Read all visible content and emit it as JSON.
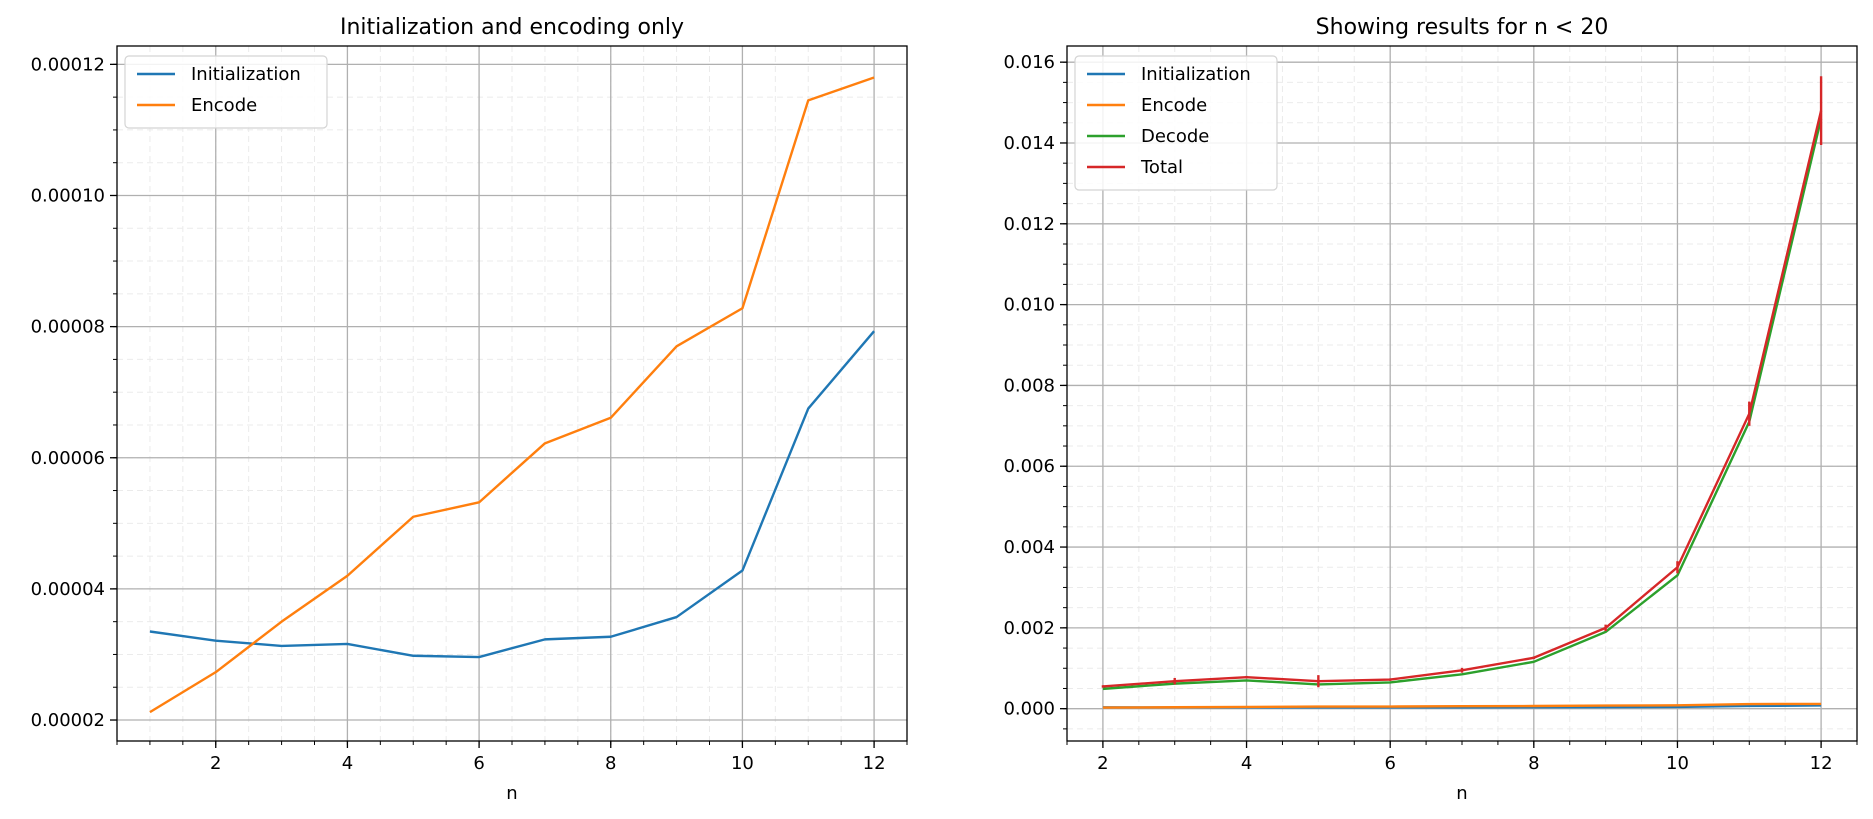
{
  "chart_data": [
    {
      "type": "line",
      "title": "Initialization and encoding only",
      "xlabel": "n",
      "ylabel": "",
      "xlim": [
        0.5,
        12.5
      ],
      "ylim": [
        1.68e-05,
        0.0001228
      ],
      "xticks": [
        2,
        4,
        6,
        8,
        10,
        12
      ],
      "xtick_labels": [
        "2",
        "4",
        "6",
        "8",
        "10",
        "12"
      ],
      "yticks": [
        2e-05,
        4e-05,
        6e-05,
        8e-05,
        0.0001,
        0.00012
      ],
      "ytick_labels": [
        "0.00002",
        "0.00004",
        "0.00006",
        "0.00008",
        "0.00010",
        "0.00012"
      ],
      "x": [
        1,
        2,
        3,
        4,
        5,
        6,
        7,
        8,
        9,
        10,
        11,
        12
      ],
      "grid": true,
      "legend_position": "top-left",
      "series": [
        {
          "name": "Initialization",
          "color": "#1f77b4",
          "values": [
            3.35e-05,
            3.21e-05,
            3.13e-05,
            3.16e-05,
            2.98e-05,
            2.96e-05,
            3.23e-05,
            3.27e-05,
            3.57e-05,
            4.28e-05,
            6.75e-05,
            7.93e-05
          ]
        },
        {
          "name": "Encode",
          "color": "#ff7f0e",
          "values": [
            2.12e-05,
            2.73e-05,
            3.5e-05,
            4.2e-05,
            5.1e-05,
            5.32e-05,
            6.22e-05,
            6.61e-05,
            7.7e-05,
            8.28e-05,
            0.0001145,
            0.000118
          ]
        }
      ]
    },
    {
      "type": "line",
      "title": "Showing results for n < 20",
      "xlabel": "n",
      "ylabel": "",
      "xlim": [
        1.5,
        12.5
      ],
      "ylim": [
        -0.0008,
        0.0164
      ],
      "xticks": [
        2,
        4,
        6,
        8,
        10,
        12
      ],
      "xtick_labels": [
        "2",
        "4",
        "6",
        "8",
        "10",
        "12"
      ],
      "yticks": [
        0,
        0.002,
        0.004,
        0.006,
        0.008,
        0.01,
        0.012,
        0.014,
        0.016
      ],
      "ytick_labels": [
        "0.000",
        "0.002",
        "0.004",
        "0.006",
        "0.008",
        "0.010",
        "0.012",
        "0.014",
        "0.016"
      ],
      "x": [
        2,
        3,
        4,
        5,
        6,
        7,
        8,
        9,
        10,
        11,
        12
      ],
      "grid": true,
      "legend_position": "top-left",
      "series": [
        {
          "name": "Initialization",
          "color": "#1f77b4",
          "values": [
            3.2e-05,
            3.1e-05,
            3.2e-05,
            3e-05,
            3e-05,
            3.2e-05,
            3.3e-05,
            3.6e-05,
            4.3e-05,
            6.8e-05,
            7.9e-05
          ]
        },
        {
          "name": "Encode",
          "color": "#ff7f0e",
          "values": [
            2.7e-05,
            3.5e-05,
            4.2e-05,
            5.1e-05,
            5.3e-05,
            6.2e-05,
            6.6e-05,
            7.7e-05,
            8.3e-05,
            0.000115,
            0.000118
          ]
        },
        {
          "name": "Decode",
          "color": "#2ca02c",
          "values": [
            0.00049,
            0.00062,
            0.0007,
            0.0006,
            0.00065,
            0.00085,
            0.00116,
            0.0019,
            0.0033,
            0.0071,
            0.0146
          ]
        },
        {
          "name": "Total",
          "color": "#d62728",
          "values": [
            0.00055,
            0.00068,
            0.00078,
            0.00068,
            0.00072,
            0.00095,
            0.00126,
            0.002,
            0.0035,
            0.0073,
            0.0148
          ],
          "error": [
            3e-05,
            8e-05,
            3e-05,
            0.00015,
            3e-05,
            6e-05,
            3e-05,
            8e-05,
            0.00015,
            0.0003,
            0.00085
          ]
        }
      ]
    }
  ]
}
